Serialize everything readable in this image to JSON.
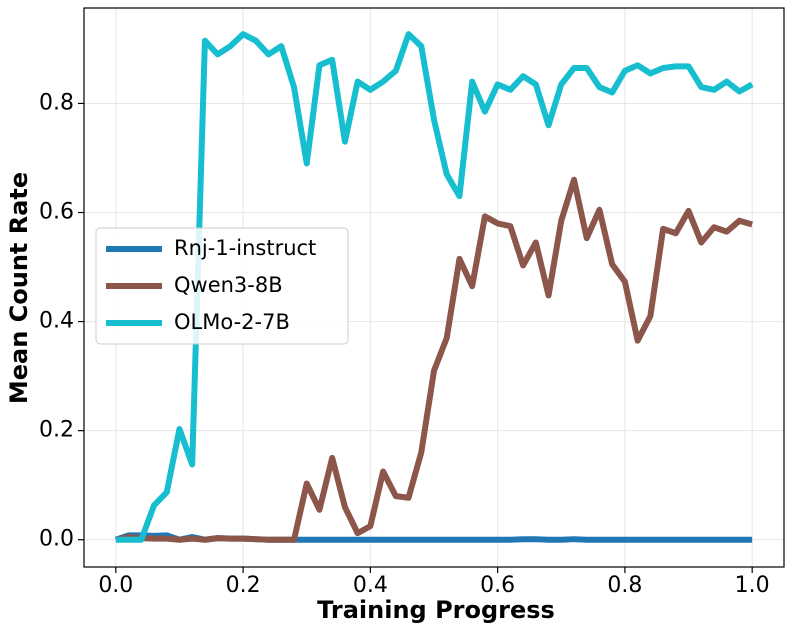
{
  "chart_data": {
    "type": "line",
    "xlabel": "Training Progress",
    "ylabel": "Mean Count Rate",
    "x": [
      0,
      0.02,
      0.04,
      0.06,
      0.08,
      0.1,
      0.12,
      0.14,
      0.16,
      0.18,
      0.2,
      0.22,
      0.24,
      0.26,
      0.28,
      0.3,
      0.32,
      0.34,
      0.36,
      0.38,
      0.4,
      0.42,
      0.44,
      0.46,
      0.48,
      0.5,
      0.52,
      0.54,
      0.56,
      0.58,
      0.6,
      0.62,
      0.64,
      0.66,
      0.68,
      0.7,
      0.72,
      0.74,
      0.76,
      0.78,
      0.8,
      0.82,
      0.84,
      0.86,
      0.88,
      0.9,
      0.92,
      0.94,
      0.96,
      0.98,
      1.0
    ],
    "series": [
      {
        "name": "Rnj-1-instruct",
        "color": "#1f77b4",
        "values": [
          0,
          0.008,
          0.008,
          0.007,
          0.008,
          0,
          0.005,
          0,
          0.003,
          0.002,
          0.002,
          0.001,
          0,
          0,
          0,
          0,
          0,
          0,
          0,
          0,
          0,
          0,
          0,
          0,
          0,
          0,
          0,
          0,
          0,
          0,
          0,
          0,
          0.001,
          0.001,
          0,
          0,
          0.001,
          0,
          0,
          0,
          0,
          0,
          0,
          0,
          0,
          0,
          0,
          0,
          0,
          0,
          0
        ]
      },
      {
        "name": "Qwen3-8B",
        "color": "#8c564b",
        "values": [
          0,
          0.005,
          0.003,
          0.002,
          0.002,
          0,
          0.002,
          0,
          0.003,
          0.002,
          0.002,
          0.001,
          0,
          0,
          0,
          0.103,
          0.055,
          0.15,
          0.06,
          0.012,
          0.025,
          0.125,
          0.08,
          0.077,
          0.16,
          0.31,
          0.37,
          0.515,
          0.465,
          0.593,
          0.58,
          0.575,
          0.503,
          0.545,
          0.448,
          0.585,
          0.66,
          0.553,
          0.605,
          0.505,
          0.473,
          0.365,
          0.41,
          0.57,
          0.562,
          0.603,
          0.545,
          0.573,
          0.565,
          0.585,
          0.578
        ]
      },
      {
        "name": "OLMo-2-7B",
        "color": "#17becf",
        "values": [
          0,
          0,
          0,
          0.063,
          0.087,
          0.203,
          0.138,
          0.915,
          0.89,
          0.905,
          0.927,
          0.915,
          0.89,
          0.905,
          0.83,
          0.69,
          0.87,
          0.88,
          0.73,
          0.84,
          0.825,
          0.84,
          0.86,
          0.927,
          0.905,
          0.77,
          0.67,
          0.63,
          0.84,
          0.785,
          0.835,
          0.825,
          0.85,
          0.835,
          0.76,
          0.835,
          0.865,
          0.865,
          0.83,
          0.82,
          0.86,
          0.87,
          0.855,
          0.865,
          0.868,
          0.868,
          0.83,
          0.825,
          0.84,
          0.822,
          0.835
        ]
      }
    ],
    "xlim": [
      -0.05,
      1.05
    ],
    "ylim": [
      -0.05,
      0.975
    ],
    "xticks": [
      {
        "value": 0,
        "label": "0.0"
      },
      {
        "value": 0.2,
        "label": "0.2"
      },
      {
        "value": 0.4,
        "label": "0.4"
      },
      {
        "value": 0.6,
        "label": "0.6"
      },
      {
        "value": 0.8,
        "label": "0.8"
      },
      {
        "value": 1,
        "label": "1.0"
      }
    ],
    "yticks": [
      {
        "value": 0,
        "label": "0.0"
      },
      {
        "value": 0.2,
        "label": "0.2"
      },
      {
        "value": 0.4,
        "label": "0.4"
      },
      {
        "value": 0.6,
        "label": "0.6"
      },
      {
        "value": 0.8,
        "label": "0.8"
      }
    ],
    "grid": true,
    "legend": "center left"
  }
}
